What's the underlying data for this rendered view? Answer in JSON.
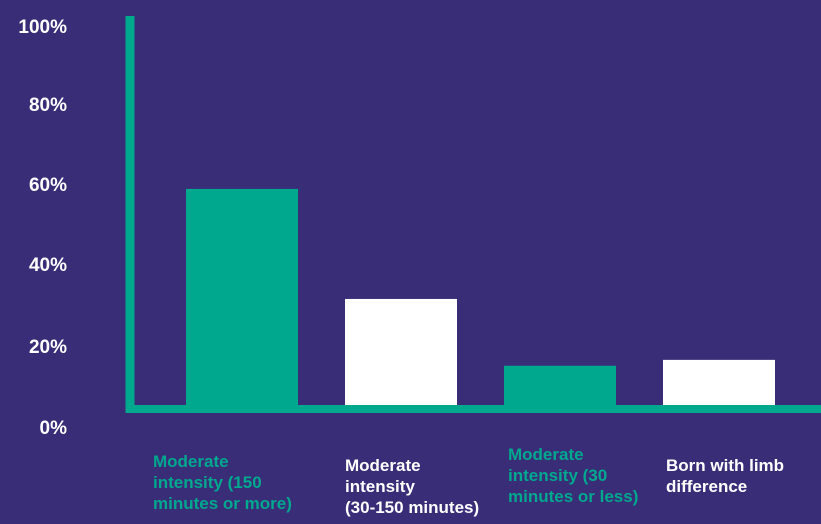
{
  "chart_data": {
    "type": "bar",
    "ylim": [
      0,
      100
    ],
    "y_ticks": [
      "0%",
      "20%",
      "40%",
      "60%",
      "80%",
      "100%"
    ],
    "grid": false,
    "categories": [
      "Moderate\nintensity (150\nminutes or more)",
      "Moderate\nintensity\n(30-150 minutes)",
      "Moderate\nintensity (30\nminutes or less)",
      "Born with limb\ndifference"
    ],
    "values": [
      56,
      28,
      11,
      12.5
    ],
    "bar_colors": [
      "#00a88e",
      "#ffffff",
      "#00a88e",
      "#ffffff"
    ],
    "label_colors": [
      "#00a88e",
      "#ffffff",
      "#00a88e",
      "#ffffff"
    ]
  },
  "colors": {
    "background": "#3a2d78",
    "axis": "#00a88e",
    "text": "#ffffff"
  }
}
